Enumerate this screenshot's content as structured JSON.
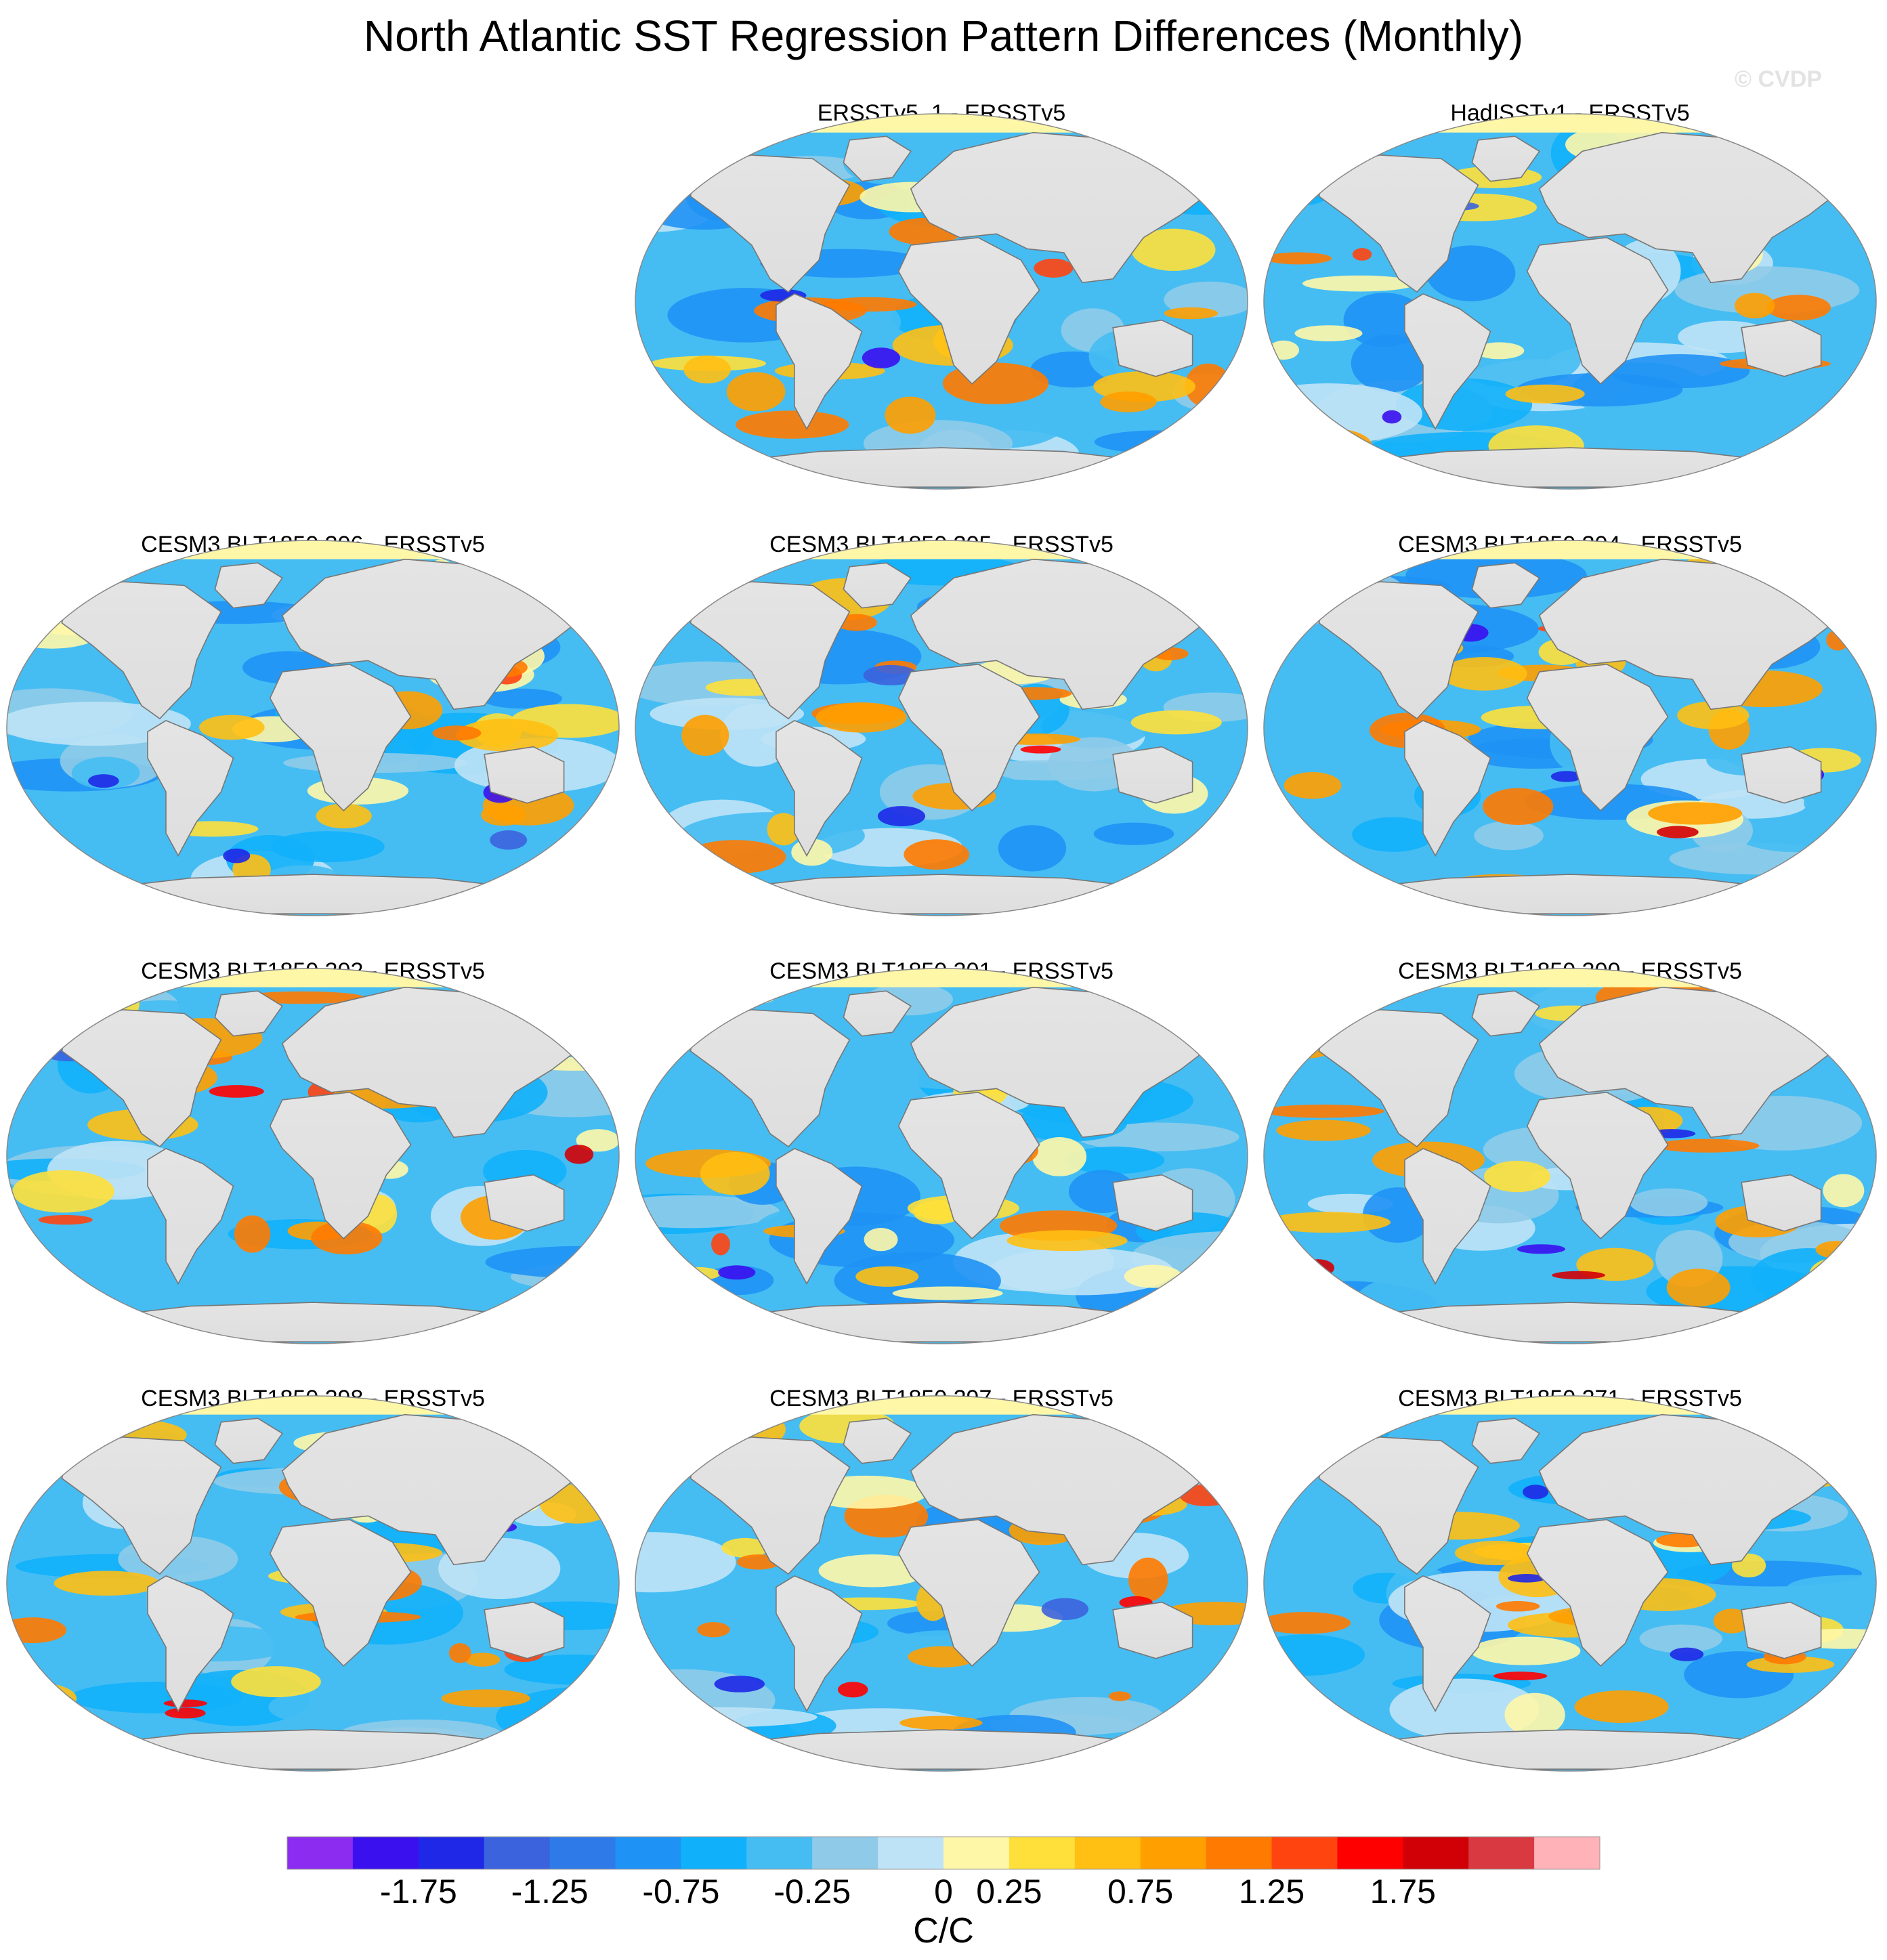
{
  "chart_data": {
    "type": "heatmap",
    "title": "North Atlantic SST Regression Pattern Differences (Monthly)",
    "watermark": "© CVDP",
    "projection": "Robinson (global map panels)",
    "panels": [
      {
        "title": "ERSSTv5_1 - ERSSTv5"
      },
      {
        "title": "HadISSTv1 - ERSSTv5"
      },
      {
        "title": "CESM3 BLT1850 306 - ERSSTv5"
      },
      {
        "title": "CESM3 BLT1850 305 - ERSSTv5"
      },
      {
        "title": "CESM3 BLT1850 304 - ERSSTv5"
      },
      {
        "title": "CESM3 BLT1850 302 - ERSSTv5"
      },
      {
        "title": "CESM3 BLT1850 301 - ERSSTv5"
      },
      {
        "title": "CESM3 BLT1850 300 - ERSSTv5"
      },
      {
        "title": "CESM3 BLT1850 298 - ERSSTv5"
      },
      {
        "title": "CESM3 BLT1850 297 - ERSSTv5"
      },
      {
        "title": "CESM3 BLT1850 271 - ERSSTv5"
      }
    ],
    "colorbar": {
      "units": "C/C",
      "levels": [
        -2.0,
        -1.75,
        -1.5,
        -1.25,
        -1.0,
        -0.75,
        -0.5,
        -0.25,
        0,
        0.25,
        0.5,
        0.75,
        1.0,
        1.25,
        1.5,
        1.75,
        2.0
      ],
      "colors": [
        "#8b2cf0",
        "#3a10ef",
        "#1e28e6",
        "#3b63de",
        "#2f7ae9",
        "#1f92f5",
        "#11b0fb",
        "#45bdf3",
        "#8fcbe9",
        "#bfe3f6",
        "#fff7a8",
        "#ffe03a",
        "#ffbf13",
        "#ff9f00",
        "#ff7a00",
        "#ff4410",
        "#ff0000",
        "#d10006",
        "#d93a42",
        "#ffb2b7"
      ],
      "tick_labels": [
        "-1.75",
        "-1.25",
        "-0.75",
        "-0.25",
        "0",
        "0.25",
        "0.75",
        "1.25",
        "1.75"
      ],
      "tick_values": [
        -1.75,
        -1.25,
        -0.75,
        -0.25,
        0,
        0.25,
        0.75,
        1.25,
        1.75
      ]
    }
  }
}
